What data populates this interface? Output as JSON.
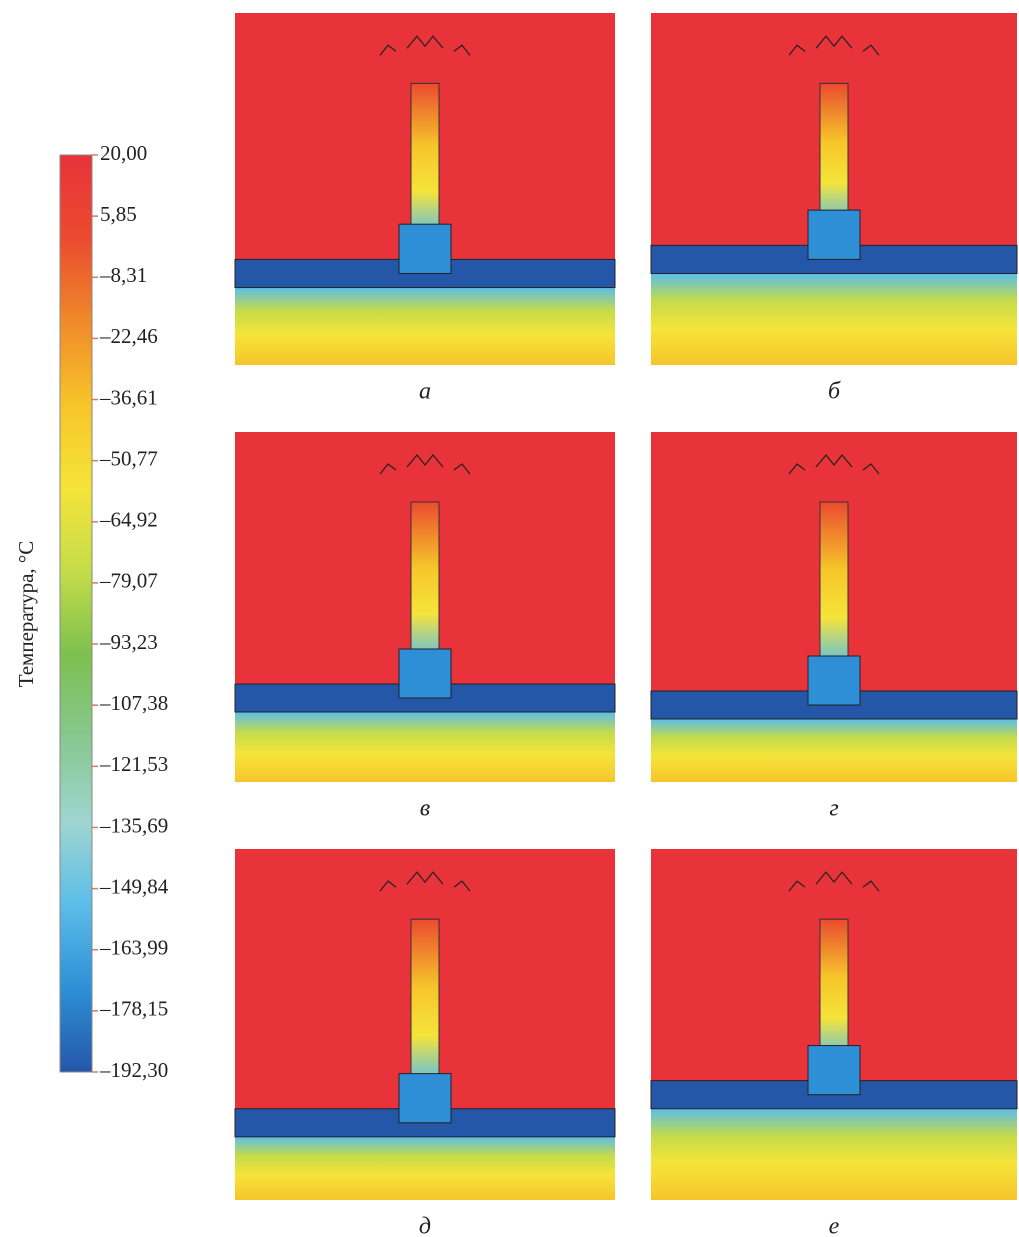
{
  "chart_data": {
    "type": "colorbar",
    "axis_label": "Температура, °C",
    "clim": [
      -192.3,
      20
    ],
    "ticks": [
      {
        "value": 20,
        "label": "20,00"
      },
      {
        "value": 5.85,
        "label": "5,85"
      },
      {
        "value": -8.31,
        "label": "–8,31"
      },
      {
        "value": -22.46,
        "label": "–22,46"
      },
      {
        "value": -36.61,
        "label": "–36,61"
      },
      {
        "value": -50.77,
        "label": "–50,77"
      },
      {
        "value": -64.92,
        "label": "–64,92"
      },
      {
        "value": -79.07,
        "label": "–79,07"
      },
      {
        "value": -93.23,
        "label": "–93,23"
      },
      {
        "value": -107.38,
        "label": "–107,38"
      },
      {
        "value": -121.53,
        "label": "–121,53"
      },
      {
        "value": -135.69,
        "label": "–135,69"
      },
      {
        "value": -149.84,
        "label": "–149,84"
      },
      {
        "value": -163.99,
        "label": "–163,99"
      },
      {
        "value": -178.15,
        "label": "–178,15"
      },
      {
        "value": -192.3,
        "label": "–192,30"
      }
    ],
    "colormap": [
      "#e8333a",
      "#ea4b2f",
      "#f08a2a",
      "#f6c52a",
      "#f5e43a",
      "#c5dc4a",
      "#7cc04e",
      "#88c790",
      "#9fd5d0",
      "#5bbde8",
      "#2e8fd6",
      "#2457a8"
    ],
    "panels": [
      "а",
      "б",
      "в",
      "г",
      "д",
      "е"
    ]
  }
}
